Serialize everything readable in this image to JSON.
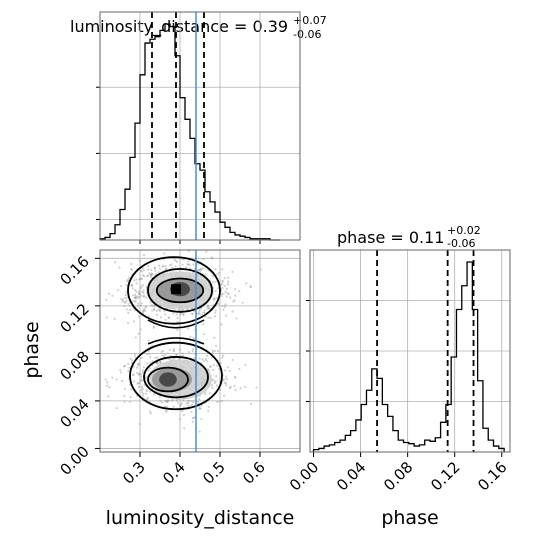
{
  "chart_data": [
    {
      "type": "histogram",
      "panel": "luminosity_distance-marginal",
      "title_param": "luminosity_distance = 0.39",
      "title_sup": "+0.07",
      "title_sub": "-0.06",
      "xlim": [
        0.2,
        0.7
      ],
      "bins": [
        0.2,
        0.2125,
        0.225,
        0.2375,
        0.25,
        0.2625,
        0.275,
        0.2875,
        0.3,
        0.3125,
        0.325,
        0.3375,
        0.35,
        0.3625,
        0.375,
        0.3875,
        0.4,
        0.4125,
        0.425,
        0.4375,
        0.45,
        0.4625,
        0.475,
        0.4875,
        0.5,
        0.5125,
        0.525,
        0.5375,
        0.55,
        0.5625,
        0.575,
        0.5875,
        0.6,
        0.6125,
        0.625,
        0.6375,
        0.65
      ],
      "values": [
        1,
        2,
        5,
        12,
        24,
        40,
        65,
        92,
        130,
        155,
        158,
        160,
        165,
        170,
        168,
        145,
        112,
        95,
        80,
        60,
        55,
        38,
        30,
        22,
        14,
        10,
        6,
        4,
        3,
        2,
        1,
        1,
        1,
        1,
        0,
        0
      ],
      "quantiles": [
        0.33,
        0.39,
        0.46
      ],
      "truth": 0.44
    },
    {
      "type": "histogram",
      "panel": "phase-marginal",
      "title_param": "phase = 0.11",
      "title_sup": "+0.02",
      "title_sub": "-0.06",
      "xlim": [
        -0.003,
        0.167
      ],
      "bins": [
        0.0,
        0.0045,
        0.009,
        0.0135,
        0.018,
        0.0225,
        0.027,
        0.0315,
        0.036,
        0.0405,
        0.045,
        0.0495,
        0.054,
        0.0585,
        0.063,
        0.0675,
        0.072,
        0.0765,
        0.081,
        0.0855,
        0.09,
        0.0945,
        0.099,
        0.1035,
        0.108,
        0.1125,
        0.117,
        0.1215,
        0.126,
        0.1305,
        0.135,
        0.1395,
        0.144,
        0.1485,
        0.153,
        0.1575,
        0.162
      ],
      "values": [
        2,
        3,
        5,
        6,
        8,
        10,
        14,
        18,
        27,
        40,
        52,
        70,
        62,
        40,
        30,
        18,
        10,
        8,
        7,
        5,
        6,
        10,
        9,
        12,
        25,
        40,
        80,
        120,
        140,
        160,
        120,
        60,
        20,
        10,
        5,
        3
      ],
      "quantiles": [
        0.054,
        0.114,
        0.136
      ]
    },
    {
      "type": "scatter",
      "panel": "2d-histogram",
      "xlabel": "luminosity_distance",
      "ylabel": "phase",
      "xlim": [
        0.2,
        0.7
      ],
      "ylim": [
        -0.003,
        0.167
      ],
      "xticks": [
        0.3,
        0.4,
        0.5,
        0.6
      ],
      "yticks": [
        0.0,
        0.04,
        0.08,
        0.12,
        0.16
      ],
      "truth_x": 0.44
    }
  ],
  "labels": {
    "xlabel_left": "luminosity_distance",
    "xlabel_right": "phase",
    "ylabel": "phase"
  },
  "ticks": {
    "x_left": [
      "0.3",
      "0.4",
      "0.5",
      "0.6"
    ],
    "x_right": [
      "0.00",
      "0.04",
      "0.08",
      "0.12",
      "0.16"
    ],
    "y_left": [
      "0.00",
      "0.04",
      "0.08",
      "0.12",
      "0.16"
    ]
  },
  "colors": {
    "truth": "#4a8fcc",
    "hist": "#000000",
    "grid": "#b0b0b0"
  }
}
